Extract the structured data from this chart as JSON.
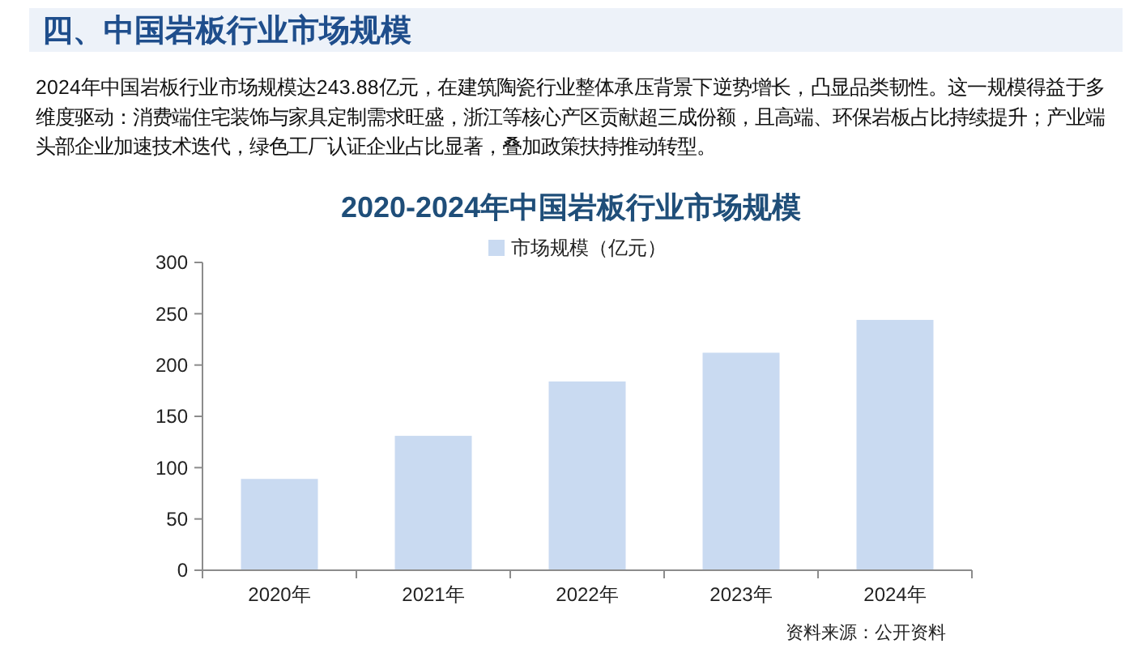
{
  "chart_data": {
    "type": "bar",
    "title": "2020-2024年中国岩板行业市场规模",
    "categories": [
      "2020年",
      "2021年",
      "2022年",
      "2023年",
      "2024年"
    ],
    "series": [
      {
        "name": "市场规模（亿元）",
        "color": "#c9daf1",
        "values": [
          89,
          131,
          184,
          212,
          244
        ]
      }
    ],
    "ylim": [
      0,
      300
    ],
    "yticks": [
      0,
      50,
      100,
      150,
      200,
      250,
      300
    ],
    "legend": "top",
    "annotations": [
      "四、中国岩板行业市场规模",
      "2024年中国岩板行业市场规模达243.88亿元，在建筑陶瓷行业整体承压背景下逆势增长，凸显品类韧性。这一规模得益于多维度驱动：消费端住宅装饰与家具定制需求旺盛，浙江等核心产区贡献超三成份额，且高端、环保岩板占比持续提升；产业端头部企业加速技术迭代，绿色工厂认证企业占比显著，叠加政策扶持推动转型。",
      "资料来源：公开资料"
    ]
  }
}
